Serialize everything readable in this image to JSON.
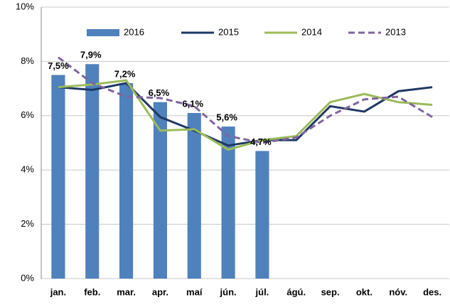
{
  "chart_data": {
    "type": "bar",
    "categories": [
      "jan.",
      "feb.",
      "mar.",
      "apr.",
      "maí",
      "jún.",
      "júl.",
      "ágú.",
      "sep.",
      "okt.",
      "nóv.",
      "des."
    ],
    "series": [
      {
        "name": "2016",
        "type": "bar",
        "color": "#4f81bd",
        "values": [
          7.5,
          7.9,
          7.2,
          6.5,
          6.1,
          5.6,
          4.7,
          null,
          null,
          null,
          null,
          null
        ],
        "value_labels": [
          "7,5%",
          "7,9%",
          "7,2%",
          "6,5%",
          "6,1%",
          "5,6%",
          "4,7%",
          null,
          null,
          null,
          null,
          null
        ]
      },
      {
        "name": "2015",
        "type": "line",
        "color": "#1f3864",
        "dashed": false,
        "values": [
          7.05,
          6.95,
          7.2,
          5.95,
          5.45,
          4.9,
          5.1,
          5.1,
          6.35,
          6.15,
          6.9,
          7.05
        ]
      },
      {
        "name": "2014",
        "type": "line",
        "color": "#9bbb59",
        "dashed": false,
        "values": [
          7.05,
          7.15,
          7.3,
          5.45,
          5.5,
          4.75,
          5.1,
          5.25,
          6.5,
          6.8,
          6.5,
          6.4
        ]
      },
      {
        "name": "2013",
        "type": "line",
        "color": "#8064a2",
        "dashed": true,
        "values": [
          8.15,
          7.2,
          6.7,
          6.65,
          6.35,
          5.25,
          5.0,
          5.2,
          6.0,
          6.6,
          6.7,
          5.95
        ]
      }
    ],
    "ylim": [
      0,
      10
    ],
    "yticks": [
      {
        "value": 0,
        "label": "0%"
      },
      {
        "value": 2,
        "label": "2%"
      },
      {
        "value": 4,
        "label": "4%"
      },
      {
        "value": 6,
        "label": "6%"
      },
      {
        "value": 8,
        "label": "8%"
      },
      {
        "value": 10,
        "label": "10%"
      }
    ],
    "grid": true,
    "legend": "top"
  }
}
